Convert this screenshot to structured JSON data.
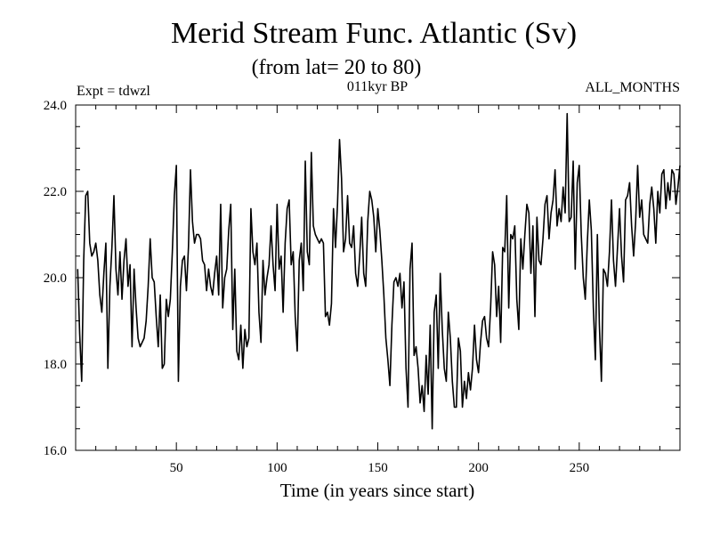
{
  "chart_data": {
    "type": "line",
    "title": "Merid Stream Func. Atlantic (Sv)",
    "subtitle": "(from lat= 20 to 80)",
    "label_left": "Expt = tdwzl",
    "label_center": "011kyr BP",
    "label_right": "ALL_MONTHS",
    "xlabel": "Time (in years since start)",
    "ylabel": "",
    "xlim": [
      0,
      300
    ],
    "ylim": [
      16.0,
      24.0
    ],
    "x_ticks": [
      50,
      100,
      150,
      200,
      250
    ],
    "y_ticks": [
      "16.0",
      "18.0",
      "20.0",
      "22.0",
      "24.0"
    ],
    "x_minor_step": 10,
    "y_minor_step": 0.5,
    "series": [
      {
        "name": "Merid Stream Func. Atlantic",
        "x_start": 1,
        "x_step": 1,
        "values": [
          20.2,
          18.7,
          17.6,
          20.4,
          21.9,
          22.0,
          20.8,
          20.5,
          20.6,
          20.8,
          20.4,
          19.6,
          19.2,
          20.1,
          20.8,
          17.9,
          19.8,
          20.7,
          21.9,
          20.2,
          19.6,
          20.6,
          19.5,
          20.4,
          20.9,
          19.8,
          20.3,
          18.4,
          20.2,
          19.3,
          18.6,
          18.4,
          18.5,
          18.6,
          19.0,
          19.8,
          20.9,
          20.0,
          19.9,
          19.1,
          18.4,
          19.6,
          17.9,
          18.0,
          19.5,
          19.1,
          19.5,
          20.6,
          21.9,
          22.6,
          17.6,
          19.8,
          20.4,
          20.5,
          19.7,
          20.7,
          22.5,
          21.3,
          20.8,
          21.0,
          21.0,
          20.9,
          20.4,
          20.3,
          19.7,
          20.2,
          19.8,
          19.6,
          20.1,
          20.5,
          19.6,
          21.7,
          19.3,
          20.0,
          20.2,
          21.1,
          21.7,
          18.8,
          20.2,
          18.3,
          18.1,
          18.9,
          17.9,
          18.8,
          18.4,
          18.6,
          21.6,
          20.6,
          20.3,
          20.8,
          19.2,
          18.5,
          20.4,
          19.6,
          20.0,
          20.3,
          21.2,
          20.3,
          19.7,
          21.7,
          20.2,
          20.5,
          19.2,
          20.8,
          21.6,
          21.8,
          20.3,
          20.6,
          19.1,
          18.3,
          20.4,
          20.8,
          19.7,
          22.7,
          20.6,
          20.3,
          22.9,
          21.2,
          21.0,
          20.9,
          20.8,
          20.9,
          20.8,
          19.1,
          19.2,
          18.9,
          19.4,
          21.6,
          20.7,
          21.7,
          23.2,
          22.3,
          20.6,
          20.9,
          21.9,
          20.8,
          20.7,
          21.2,
          20.1,
          19.8,
          20.5,
          21.4,
          20.1,
          19.8,
          21.3,
          22.0,
          21.8,
          21.4,
          20.6,
          21.6,
          21.1,
          20.4,
          19.6,
          18.6,
          18.1,
          17.5,
          18.9,
          19.9,
          20.0,
          19.8,
          20.1,
          19.3,
          19.9,
          17.9,
          17.0,
          20.2,
          20.8,
          18.2,
          18.4,
          17.9,
          17.1,
          17.5,
          16.9,
          18.2,
          17.3,
          18.9,
          16.5,
          19.2,
          19.6,
          17.9,
          20.1,
          18.8,
          17.9,
          17.6,
          19.2,
          18.6,
          17.6,
          17.0,
          17.0,
          18.6,
          18.3,
          17.0,
          17.6,
          17.2,
          17.8,
          17.4,
          17.9,
          18.9,
          18.1,
          17.8,
          18.5,
          19.0,
          19.1,
          18.6,
          18.4,
          19.3,
          20.6,
          20.3,
          19.1,
          19.8,
          18.5,
          20.7,
          20.6,
          21.9,
          19.3,
          21.0,
          20.9,
          21.2,
          19.5,
          18.8,
          20.9,
          20.2,
          21.0,
          21.7,
          21.5,
          20.1,
          21.2,
          19.1,
          21.4,
          20.4,
          20.3,
          20.9,
          21.7,
          21.9,
          20.9,
          21.5,
          21.8,
          22.5,
          21.2,
          21.6,
          21.3,
          22.1,
          21.5,
          23.8,
          21.3,
          21.4,
          22.7,
          20.2,
          22.2,
          22.6,
          21.0,
          20.0,
          19.5,
          20.8,
          21.8,
          21.1,
          19.3,
          18.1,
          21.0,
          18.9,
          17.6,
          20.2,
          20.1,
          19.8,
          20.6,
          21.8,
          20.4,
          19.8,
          20.7,
          21.6,
          20.5,
          19.9,
          21.8,
          21.9,
          22.2,
          21.2,
          20.5,
          21.3,
          22.6,
          21.4,
          21.8,
          21.0,
          20.9,
          20.8,
          21.7,
          22.1,
          21.6,
          20.8,
          22.0,
          21.5,
          22.4,
          22.5,
          21.6,
          22.2,
          21.8,
          22.5,
          22.4,
          21.7,
          22.1,
          22.6
        ]
      }
    ]
  }
}
